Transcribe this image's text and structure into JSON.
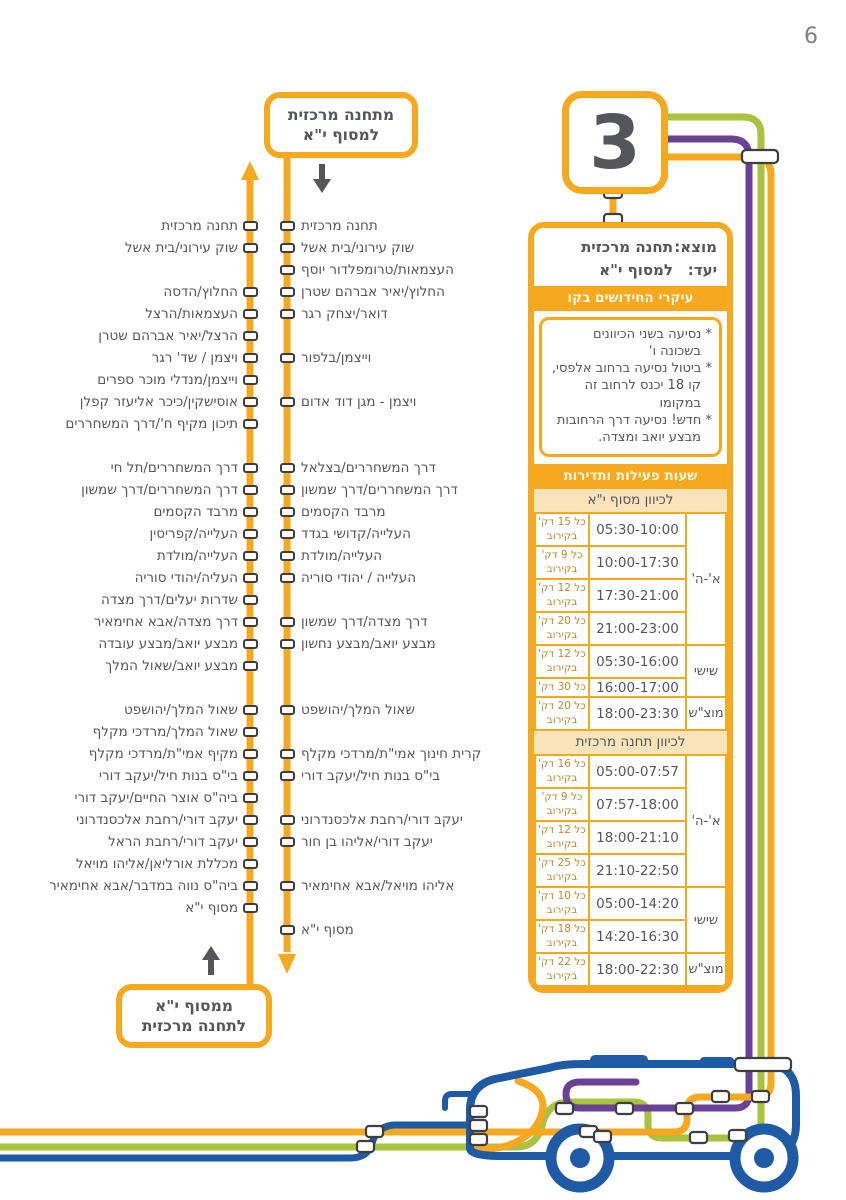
{
  "page": {
    "number": "6"
  },
  "route": {
    "number": "3",
    "origin_label": "מוצא:",
    "origin": "תחנה מרכזית",
    "dest_label": "יעד:",
    "dest": "למסוף י\"א"
  },
  "direction_boxes": {
    "top": [
      "מתחנה מרכזית",
      "למסוף י\"א"
    ],
    "bottom": [
      "ממסוף י\"א",
      "לתחנה מרכזית"
    ]
  },
  "icons": {
    "down_arrow": "down-arrow",
    "up_arrow": "up-arrow",
    "stop_marker": "stop-marker"
  },
  "colors": {
    "orange": "#F6A81F",
    "green": "#A9C23F",
    "purple": "#6B4097",
    "blue": "#1E5AA5",
    "dark_gray": "#55565A",
    "cream": "#FBE3BC",
    "freq_amber": "#BE8A2E"
  },
  "highlights": {
    "title": "עיקרי החידושים בקו",
    "bullet": "*",
    "items": [
      "נסיעה בשני הכיוונים בשכונה ו'",
      "ביטול נסיעה ברחוב אלפסי, קו 18 יכנס לרחוב זה במקומו",
      "חדש! נסיעה דרך הרחובות מבצע יואב ומצדה."
    ]
  },
  "schedule": {
    "title": "שעות פעילות ותדירות",
    "sections": [
      {
        "header": "לכיוון מסוף י\"א",
        "groups": [
          {
            "day": "א'-ה'",
            "rows": [
              {
                "time": "05:30-10:00",
                "f1": "כל 15 דק'",
                "f2": "בקירוב"
              },
              {
                "time": "10:00-17:30",
                "f1": "כל 9 דק'",
                "f2": "בקירוב"
              },
              {
                "time": "17:30-21:00",
                "f1": "כל 12 דק'",
                "f2": "בקירוב"
              },
              {
                "time": "21:00-23:00",
                "f1": "כל 20 דק'",
                "f2": "בקירוב"
              }
            ]
          },
          {
            "day": "שישי",
            "rows": [
              {
                "time": "05:30-16:00",
                "f1": "כל 12 דק'",
                "f2": "בקירוב"
              },
              {
                "time": "16:00-17:00",
                "f1": "כל 30 דק'",
                "f2": ""
              }
            ]
          },
          {
            "day": "מוצ\"ש",
            "rows": [
              {
                "time": "18:00-23:30",
                "f1": "כל 20 דק'",
                "f2": "בקירוב"
              }
            ]
          }
        ]
      },
      {
        "header": "לכיוון תחנה מרכזית",
        "groups": [
          {
            "day": "א'-ה'",
            "rows": [
              {
                "time": "05:00-07:57",
                "f1": "כל 16 דק'",
                "f2": "בקירוב"
              },
              {
                "time": "07:57-18:00",
                "f1": "כל 9 דק'",
                "f2": "בקירוב"
              },
              {
                "time": "18:00-21:10",
                "f1": "כל 12 דק'",
                "f2": "בקירוב"
              },
              {
                "time": "21:10-22:50",
                "f1": "כל 25 דק'",
                "f2": "בקירוב"
              }
            ]
          },
          {
            "day": "שישי",
            "rows": [
              {
                "time": "05:00-14:20",
                "f1": "כל 10 דק'",
                "f2": "בקירוב"
              },
              {
                "time": "14:20-16:30",
                "f1": "כל 18 דק'",
                "f2": "בקירוב"
              }
            ]
          },
          {
            "day": "מוצ\"ש",
            "rows": [
              {
                "time": "18:00-22:30",
                "f1": "כל 22 דק'",
                "f2": "בקירוב"
              }
            ]
          }
        ]
      }
    ]
  },
  "route_map": {
    "rows": [
      {
        "left": "תחנה מרכזית",
        "mid": "תחנה מרכזית"
      },
      {
        "left": "שוק עירוני/בית אשל",
        "mid": "שוק עירוני/בית אשל"
      },
      {
        "left": null,
        "mid": "העצמאות/טרומפלדור יוסף"
      },
      {
        "left": "החלוץ/הדסה",
        "mid": "החלוץ/יאיר אברהם שטרן"
      },
      {
        "left": "העצמאות/הרצל",
        "mid": "דואר/יצחק רגר"
      },
      {
        "left": "הרצל/יאיר אברהם שטרן",
        "mid": null
      },
      {
        "left": "ויצמן / שד' רגר",
        "mid": "וייצמן/בלפור"
      },
      {
        "left": "וייצמן/מנדלי מוכר ספרים",
        "mid": null
      },
      {
        "left": "אוסישקין/כיכר אליעזר קפלן",
        "mid": "ויצמן - מגן דוד אדום"
      },
      {
        "left": "תיכון מקיף ח'/דרך המשחררים",
        "mid": null
      },
      {
        "left": null,
        "mid": null
      },
      {
        "left": "דרך המשחררים/תל חי",
        "mid": "דרך המשחררים/בצלאל"
      },
      {
        "left": "דרך המשחררים/דרך שמשון",
        "mid": "דרך המשחררים/דרך שמשון"
      },
      {
        "left": "מרבד הקסמים",
        "mid": "מרבד הקסמים"
      },
      {
        "left": "העלייה/קפריסין",
        "mid": "העלייה/קדושי בגדד"
      },
      {
        "left": "העלייה/מולדת",
        "mid": "העלייה/מולדת"
      },
      {
        "left": "העליה/יהודי סוריה",
        "mid": "העלייה / יהודי סוריה"
      },
      {
        "left": "שדרות יעלים/דרך מצדה",
        "mid": null
      },
      {
        "left": "דרך מצדה/אבא אחימאיר",
        "mid": "דרך מצדה/דרך שמשון"
      },
      {
        "left": "מבצע יואב/מבצע עובדה",
        "mid": "מבצע יואב/מבצע נחשון"
      },
      {
        "left": "מבצע יואב/שאול המלך",
        "mid": null
      },
      {
        "left": null,
        "mid": null
      },
      {
        "left": "שאול המלך/יהושפט",
        "mid": "שאול המלך/יהושפט"
      },
      {
        "left": "שאול המלך/מרדכי מקלף",
        "mid": null
      },
      {
        "left": "מקיף אמי\"ת/מרדכי מקלף",
        "mid": "קרית חינוך אמי\"ת/מרדכי מקלף"
      },
      {
        "left": "בי\"ס בנות חיל/יעקב דורי",
        "mid": "בי\"ס בנות חיל/יעקב דורי"
      },
      {
        "left": "ביה\"ס אוצר החיים/יעקב דורי",
        "mid": null
      },
      {
        "left": "יעקב דורי/רחבת אלכסנדרוני",
        "mid": "יעקב דורי/רחבת אלכסנדרוני"
      },
      {
        "left": "יעקב דורי/רחבת הראל",
        "mid": "יעקב דורי/אליהו בן חור"
      },
      {
        "left": "מכללת אורליאן/אליהו מויאל",
        "mid": null
      },
      {
        "left": "ביה\"ס נווה במדבר/אבא אחימאיר",
        "mid": "אליהו מויאל/אבא אחימאיר"
      },
      {
        "left": "מסוף י\"א",
        "mid": null
      },
      {
        "left": null,
        "mid": "מסוף י\"א"
      }
    ]
  }
}
